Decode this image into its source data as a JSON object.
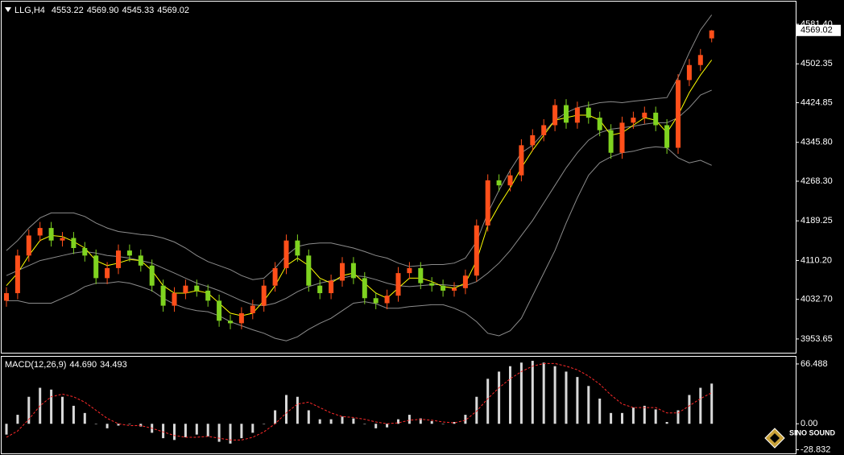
{
  "chart_data": [
    {
      "type": "candlestick",
      "symbol": "LLG,H4",
      "header_values": [
        "4553.22",
        "4569.90",
        "4545.33",
        "4569.02"
      ],
      "up_color": "#ff4f1a",
      "down_color": "#7fd320",
      "band_color": "#8c8c8c",
      "ma_color": "#ffff00",
      "ylim": [
        3926.2,
        4626.5
      ],
      "yticks": [
        {
          "value": 4581.4,
          "label": "4581.40"
        },
        4502.35,
        4424.85,
        {
          "value": 4345.8,
          "label": "4345.80"
        },
        {
          "value": 4268.3,
          "label": "4268.30"
        },
        4189.25,
        {
          "value": 4110.2,
          "label": "4110.20"
        },
        {
          "value": 4032.7,
          "label": "4032.70"
        },
        3953.65
      ],
      "open": [
        4030,
        4045,
        4120,
        4160,
        4175,
        4150,
        4155,
        4135,
        4120,
        4075,
        4095,
        4130,
        4120,
        4100,
        4060,
        4020,
        4045,
        4060,
        4050,
        4030,
        3990,
        3985,
        4005,
        4020,
        4060,
        4095,
        4150,
        4120,
        4060,
        4045,
        4070,
        4105,
        4075,
        4035,
        4025,
        4040,
        4085,
        4095,
        4065,
        4060,
        4050,
        4055,
        4080,
        4180,
        4270,
        4260,
        4280,
        4340,
        4360,
        4380,
        4420,
        4385,
        4415,
        4395,
        4370,
        4325,
        4385,
        4395,
        4405,
        4380,
        4335,
        4470,
        4500,
        4553.22
      ],
      "high": [
        4057,
        4132,
        4172,
        4187,
        4187,
        4167,
        4167,
        4147,
        4132,
        4107,
        4142,
        4142,
        4132,
        4112,
        4072,
        4057,
        4072,
        4072,
        4062,
        4042,
        4002,
        4017,
        4032,
        4072,
        4107,
        4162,
        4162,
        4132,
        4072,
        4082,
        4117,
        4117,
        4087,
        4047,
        4052,
        4097,
        4107,
        4107,
        4077,
        4072,
        4067,
        4092,
        4192,
        4282,
        4282,
        4292,
        4352,
        4372,
        4392,
        4432,
        4432,
        4427,
        4427,
        4407,
        4382,
        4397,
        4407,
        4417,
        4417,
        4392,
        4482,
        4512,
        4532,
        4569.9
      ],
      "low": [
        4018,
        4033,
        4108,
        4148,
        4138,
        4138,
        4123,
        4108,
        4063,
        4063,
        4083,
        4108,
        4088,
        4048,
        4008,
        4008,
        4033,
        4038,
        4018,
        3978,
        3973,
        3973,
        3993,
        4008,
        4048,
        4083,
        4108,
        4048,
        4033,
        4033,
        4058,
        4063,
        4023,
        4013,
        4013,
        4028,
        4073,
        4053,
        4048,
        4038,
        4038,
        4043,
        4068,
        4168,
        4248,
        4248,
        4268,
        4328,
        4348,
        4368,
        4373,
        4373,
        4383,
        4358,
        4313,
        4313,
        4373,
        4383,
        4368,
        4323,
        4323,
        4458,
        4488,
        4545.33
      ],
      "close": [
        4045,
        4120,
        4160,
        4175,
        4150,
        4155,
        4135,
        4120,
        4075,
        4095,
        4130,
        4120,
        4100,
        4060,
        4020,
        4045,
        4060,
        4050,
        4030,
        3990,
        3985,
        4005,
        4020,
        4060,
        4095,
        4150,
        4120,
        4060,
        4045,
        4070,
        4105,
        4075,
        4035,
        4025,
        4040,
        4085,
        4095,
        4065,
        4060,
        4050,
        4055,
        4080,
        4180,
        4270,
        4260,
        4280,
        4340,
        4360,
        4380,
        4420,
        4385,
        4415,
        4395,
        4370,
        4325,
        4385,
        4395,
        4405,
        4380,
        4335,
        4470,
        4500,
        4520,
        4569.02
      ],
      "upper_band": [
        4130,
        4150,
        4175,
        4195,
        4205,
        4205,
        4205,
        4198,
        4185,
        4175,
        4168,
        4165,
        4162,
        4160,
        4155,
        4147,
        4135,
        4120,
        4108,
        4100,
        4092,
        4080,
        4072,
        4075,
        4095,
        4120,
        4138,
        4143,
        4145,
        4145,
        4140,
        4135,
        4128,
        4120,
        4115,
        4105,
        4098,
        4100,
        4102,
        4102,
        4105,
        4115,
        4148,
        4205,
        4250,
        4290,
        4325,
        4340,
        4365,
        4390,
        4405,
        4415,
        4420,
        4425,
        4427,
        4425,
        4428,
        4430,
        4433,
        4435,
        4475,
        4525,
        4570,
        4600
      ],
      "middle_band": [
        4080,
        4090,
        4100,
        4110,
        4115,
        4120,
        4125,
        4128,
        4125,
        4120,
        4118,
        4115,
        4110,
        4105,
        4095,
        4085,
        4075,
        4065,
        4058,
        4050,
        4040,
        4030,
        4022,
        4020,
        4025,
        4035,
        4048,
        4058,
        4065,
        4070,
        4075,
        4080,
        4078,
        4072,
        4065,
        4060,
        4058,
        4060,
        4062,
        4062,
        4060,
        4060,
        4068,
        4085,
        4105,
        4130,
        4160,
        4190,
        4225,
        4260,
        4295,
        4325,
        4350,
        4365,
        4372,
        4375,
        4378,
        4382,
        4385,
        4385,
        4395,
        4415,
        4440,
        4450
      ],
      "lower_band": [
        4030,
        4030,
        4025,
        4025,
        4025,
        4035,
        4045,
        4058,
        4065,
        4065,
        4068,
        4065,
        4058,
        4050,
        4035,
        4023,
        4015,
        4010,
        4008,
        4000,
        3988,
        3980,
        3972,
        3965,
        3955,
        3950,
        3958,
        3973,
        3985,
        3995,
        4010,
        4025,
        4028,
        4024,
        4015,
        4015,
        4018,
        4020,
        4022,
        4022,
        4015,
        4005,
        3988,
        3965,
        3960,
        3970,
        3995,
        4040,
        4085,
        4130,
        4185,
        4235,
        4280,
        4305,
        4317,
        4325,
        4328,
        4334,
        4337,
        4335,
        4315,
        4305,
        4310,
        4300
      ],
      "ma": [
        4060,
        4085,
        4120,
        4150,
        4160,
        4158,
        4148,
        4135,
        4110,
        4100,
        4105,
        4112,
        4110,
        4090,
        4060,
        4045,
        4045,
        4050,
        4045,
        4025,
        4005,
        4000,
        4005,
        4030,
        4060,
        4100,
        4115,
        4100,
        4075,
        4065,
        4080,
        4085,
        4065,
        4045,
        4035,
        4055,
        4075,
        4075,
        4068,
        4058,
        4055,
        4065,
        4110,
        4180,
        4220,
        4255,
        4295,
        4330,
        4360,
        4390,
        4395,
        4400,
        4400,
        4390,
        4360,
        4365,
        4380,
        4395,
        4390,
        4365,
        4400,
        4445,
        4480,
        4510
      ]
    },
    {
      "type": "macd",
      "title": "MACD(12,26,9)",
      "header_values": [
        "44.690",
        "34.493"
      ],
      "color": "#d9d9d9",
      "signal_color": "#ff2a2a",
      "ylim": [
        -32.9,
        74.5
      ],
      "yticks": [
        66.488,
        {
          "value": 0,
          "label": "0.00"
        },
        -28.832
      ],
      "values": [
        -12,
        10,
        30,
        40,
        38,
        30,
        20,
        12,
        0,
        -5,
        -2,
        0,
        -3,
        -10,
        -16,
        -18,
        -15,
        -12,
        -14,
        -20,
        -22,
        -16,
        -10,
        0,
        15,
        32,
        30,
        15,
        5,
        5,
        8,
        6,
        0,
        -5,
        -4,
        5,
        10,
        6,
        3,
        0,
        2,
        10,
        30,
        50,
        58,
        64,
        68,
        70,
        68,
        64,
        58,
        52,
        42,
        28,
        12,
        12,
        18,
        20,
        16,
        2,
        15,
        32,
        40,
        44.69
      ],
      "signal": [
        -15,
        -8,
        5,
        20,
        30,
        33,
        30,
        24,
        15,
        6,
        0,
        -2,
        -2,
        -5,
        -9,
        -13,
        -15,
        -15,
        -14,
        -16,
        -18,
        -18,
        -15,
        -9,
        0,
        12,
        22,
        24,
        18,
        12,
        8,
        7,
        5,
        2,
        0,
        1,
        4,
        5,
        4,
        2,
        1,
        4,
        14,
        28,
        40,
        50,
        58,
        64,
        67,
        67,
        64,
        60,
        53,
        44,
        32,
        22,
        18,
        18,
        18,
        12,
        12,
        20,
        28,
        34.493
      ]
    }
  ],
  "watermark": "SINO SOUND"
}
